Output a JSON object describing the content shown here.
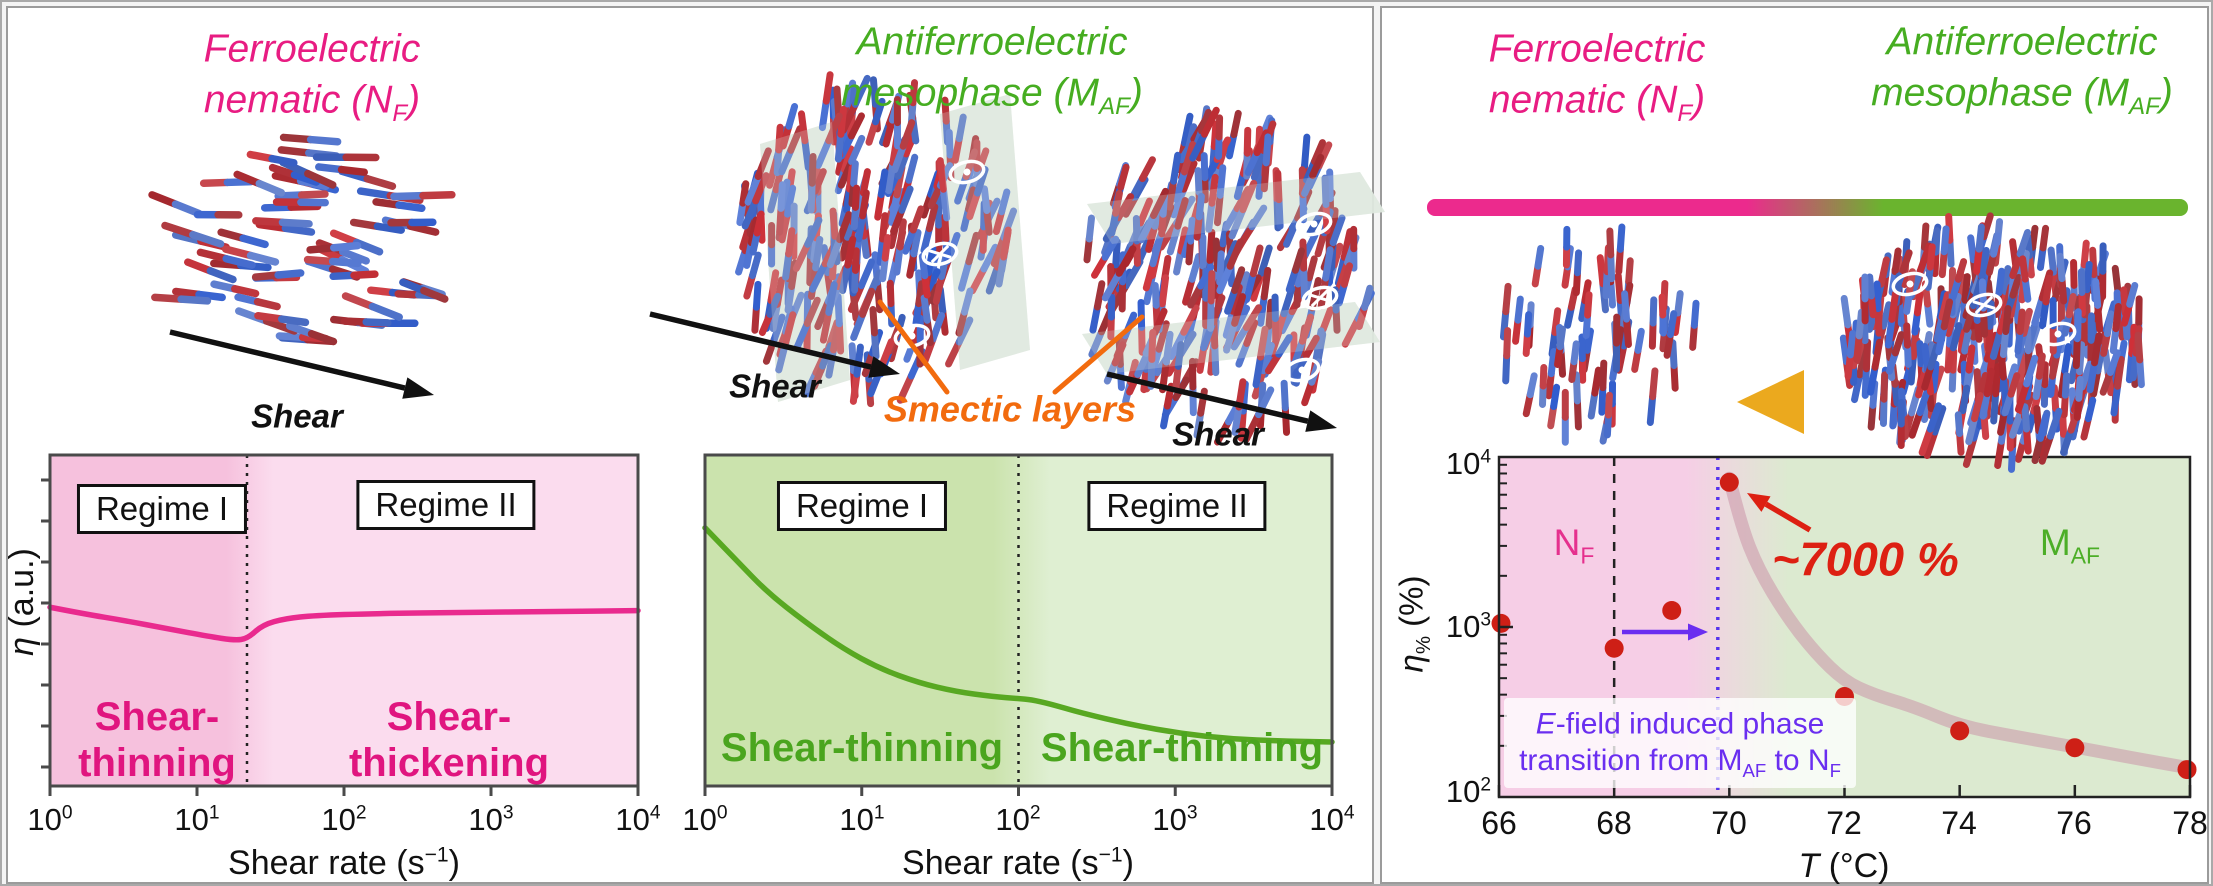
{
  "colors": {
    "ferroelectric_pink": "#e81c82",
    "antiferroelectric_green": "#46ad21",
    "smectic_orange": "#f26b0e",
    "annotation_pink": "#e0157f",
    "annotation_green": "#4aa51e",
    "curve_pink": "#e92a8e",
    "curve_green": "#58a822",
    "scatter_red": "#ce1f16",
    "peak_red": "#dd2012",
    "efield_purple": "#6a2ef0",
    "rod_red": "#bf3a34",
    "rod_blue": "#4f6fc8",
    "smectic_plane": "#dfe9df"
  },
  "labels": {
    "shear": "Shear",
    "smectic": "Smectic layers"
  },
  "titles": {
    "nf": {
      "line1": "Ferroelectric",
      "l2pre": "nematic (N",
      "l2sub": "F",
      "l2post": ")"
    },
    "maf": {
      "line1": "Antiferroelectric",
      "l2pre": "mesophase (M",
      "l2sub": "AF",
      "l2post": ")"
    }
  },
  "chart_data": [
    {
      "id": "nf-shear-viscosity",
      "type": "line",
      "x_scale": "log",
      "x_range": [
        1,
        10000
      ],
      "x_ticks": [
        {
          "b": "10",
          "e": "0"
        },
        {
          "b": "10",
          "e": "1"
        },
        {
          "b": "10",
          "e": "2"
        },
        {
          "b": "10",
          "e": "3"
        },
        {
          "b": "10",
          "e": "4"
        }
      ],
      "xlabel": {
        "pre": "Shear rate (s",
        "sup": "−1",
        "post": ")"
      },
      "ylabel": {
        "sym": "η",
        "rest": " (a.u.)"
      },
      "y_units": "arbitrary, normalized 0-1",
      "divider_x": 22,
      "regimes": [
        {
          "label": "Regime I",
          "behavior_line1": "Shear-",
          "behavior_line2": "thinning",
          "x_range": [
            1,
            22
          ]
        },
        {
          "label": "Regime II",
          "behavior_line1": "Shear-",
          "behavior_line2": "thickening",
          "x_range": [
            22,
            10000
          ]
        }
      ],
      "curve_color": "#e92a8e",
      "bg_left": "#f6c1dd",
      "bg_right": "#fbdcee",
      "series": [
        {
          "name": "viscosity (N_F)",
          "points": [
            [
              1,
              0.54
            ],
            [
              1.7,
              0.52
            ],
            [
              3.2,
              0.5
            ],
            [
              6.3,
              0.475
            ],
            [
              12,
              0.452
            ],
            [
              18,
              0.44
            ],
            [
              22,
              0.445
            ],
            [
              28,
              0.487
            ],
            [
              40,
              0.506
            ],
            [
              63,
              0.515
            ],
            [
              160,
              0.521
            ],
            [
              630,
              0.524
            ],
            [
              2500,
              0.527
            ],
            [
              10000,
              0.53
            ]
          ]
        }
      ]
    },
    {
      "id": "maf-shear-viscosity",
      "type": "line",
      "x_scale": "log",
      "x_range": [
        1,
        10000
      ],
      "x_ticks": [
        {
          "b": "10",
          "e": "0"
        },
        {
          "b": "10",
          "e": "1"
        },
        {
          "b": "10",
          "e": "2"
        },
        {
          "b": "10",
          "e": "3"
        },
        {
          "b": "10",
          "e": "4"
        }
      ],
      "xlabel": {
        "pre": "Shear rate (s",
        "sup": "−1",
        "post": ")"
      },
      "y_units": "arbitrary, normalized 0-1",
      "divider_x": 100,
      "regimes": [
        {
          "label": "Regime I",
          "behavior": "Shear-thinning",
          "x_range": [
            1,
            100
          ]
        },
        {
          "label": "Regime II",
          "behavior": "Shear-thinning",
          "x_range": [
            100,
            10000
          ]
        }
      ],
      "curve_color": "#58a822",
      "bg_left": "#cbe3ad",
      "bg_right": "#dfefd2",
      "series": [
        {
          "name": "viscosity (M_AF)",
          "points": [
            [
              1,
              0.78
            ],
            [
              1.6,
              0.68
            ],
            [
              2.5,
              0.585
            ],
            [
              4.4,
              0.494
            ],
            [
              7.6,
              0.415
            ],
            [
              13,
              0.355
            ],
            [
              23,
              0.312
            ],
            [
              40,
              0.285
            ],
            [
              69,
              0.27
            ],
            [
              100,
              0.264
            ],
            [
              120,
              0.261
            ],
            [
              160,
              0.248
            ],
            [
              250,
              0.221
            ],
            [
              525,
              0.185
            ],
            [
              1100,
              0.158
            ],
            [
              2300,
              0.142
            ],
            [
              4800,
              0.136
            ],
            [
              10000,
              0.133
            ]
          ]
        }
      ]
    },
    {
      "id": "viscosity-enhancement-vs-temperature",
      "type": "scatter",
      "x_range": [
        66,
        78
      ],
      "x_ticks": [
        "66",
        "68",
        "70",
        "72",
        "74",
        "76",
        "78"
      ],
      "xlabel": {
        "t": "T",
        "rest": " (°C)"
      },
      "y_scale": "log",
      "y_range": [
        100,
        10000
      ],
      "y_ticks": [
        {
          "b": "10",
          "e": "4"
        },
        {
          "b": "10",
          "e": "3"
        },
        {
          "b": "10",
          "e": "2"
        }
      ],
      "ylabel": {
        "sym": "η",
        "sub": "%",
        "rest": " (%)"
      },
      "points": [
        [
          66,
          1050
        ],
        [
          68,
          750
        ],
        [
          69,
          1250
        ],
        [
          70,
          7100
        ],
        [
          72,
          390
        ],
        [
          74,
          245
        ],
        [
          76,
          195
        ],
        [
          78,
          145
        ]
      ],
      "trend": [
        [
          70,
          7500
        ],
        [
          70.2,
          4000
        ],
        [
          70.5,
          2200
        ],
        [
          71,
          1150
        ],
        [
          71.5,
          700
        ],
        [
          72,
          480
        ],
        [
          72.5,
          400
        ],
        [
          73.2,
          340
        ],
        [
          74,
          262
        ],
        [
          75,
          226
        ],
        [
          76,
          197
        ],
        [
          77,
          170
        ],
        [
          78,
          148
        ]
      ],
      "dashed_line_x": 68,
      "dotted_line_x": 69.8,
      "regions": [
        {
          "label_pre": "N",
          "label_sub": "F",
          "color": "#e5308e",
          "x_range": [
            66,
            70
          ]
        },
        {
          "label_pre": "M",
          "label_sub": "AF",
          "color": "#4cae27",
          "x_range": [
            70,
            78
          ]
        }
      ],
      "annotations": {
        "peak": "~7000 %",
        "efield_l1_em": "E",
        "efield_l1_rest": "-field induced phase",
        "efield_l2_pre": "transition from M",
        "efield_l2_sub1": "AF",
        "efield_l2_mid": " to N",
        "efield_l2_sub2": "F"
      },
      "point_color": "#ce1f16",
      "trend_color": "#cb94a8",
      "bg_left": "#f6cee6",
      "bg_right": "#dcead0"
    }
  ]
}
